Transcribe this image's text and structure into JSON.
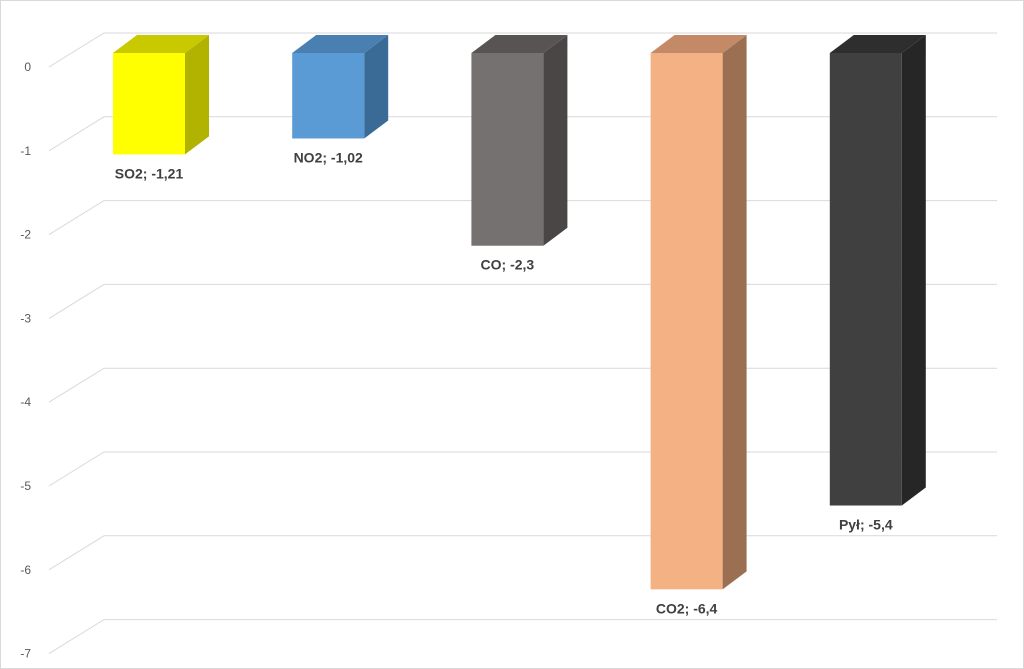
{
  "chart_data": {
    "type": "bar",
    "style": "3d-column",
    "categories": [
      "SO2",
      "NO2",
      "CO",
      "CO2",
      "Pył"
    ],
    "values": [
      -1.21,
      -1.02,
      -2.3,
      -6.4,
      -5.4
    ],
    "data_labels": [
      "SO2; -1,21",
      "NO2; -1,02",
      "CO; -2,3",
      "CO2; -6,4",
      "Pył; -5,4"
    ],
    "ylim": [
      -7,
      0
    ],
    "yticks": [
      0,
      -1,
      -2,
      -3,
      -4,
      -5,
      -6,
      -7
    ],
    "ytick_labels": [
      "0",
      "-1",
      "-2",
      "-3",
      "-4",
      "-5",
      "-6",
      "-7"
    ],
    "grid": true,
    "legend": "none",
    "colors": {
      "front": [
        "#FFFF00",
        "#5B9BD5",
        "#767171",
        "#F4B183",
        "#404040"
      ],
      "side": [
        "#B2B200",
        "#3A6A96",
        "#4A4646",
        "#9B7052",
        "#262626"
      ],
      "top": [
        "#C9C900",
        "#4A7FB2",
        "#585454",
        "#C48A67",
        "#2E2E2E"
      ],
      "grid": "#d9d9d9",
      "label": "#404040",
      "axis_text": "#595959"
    }
  }
}
